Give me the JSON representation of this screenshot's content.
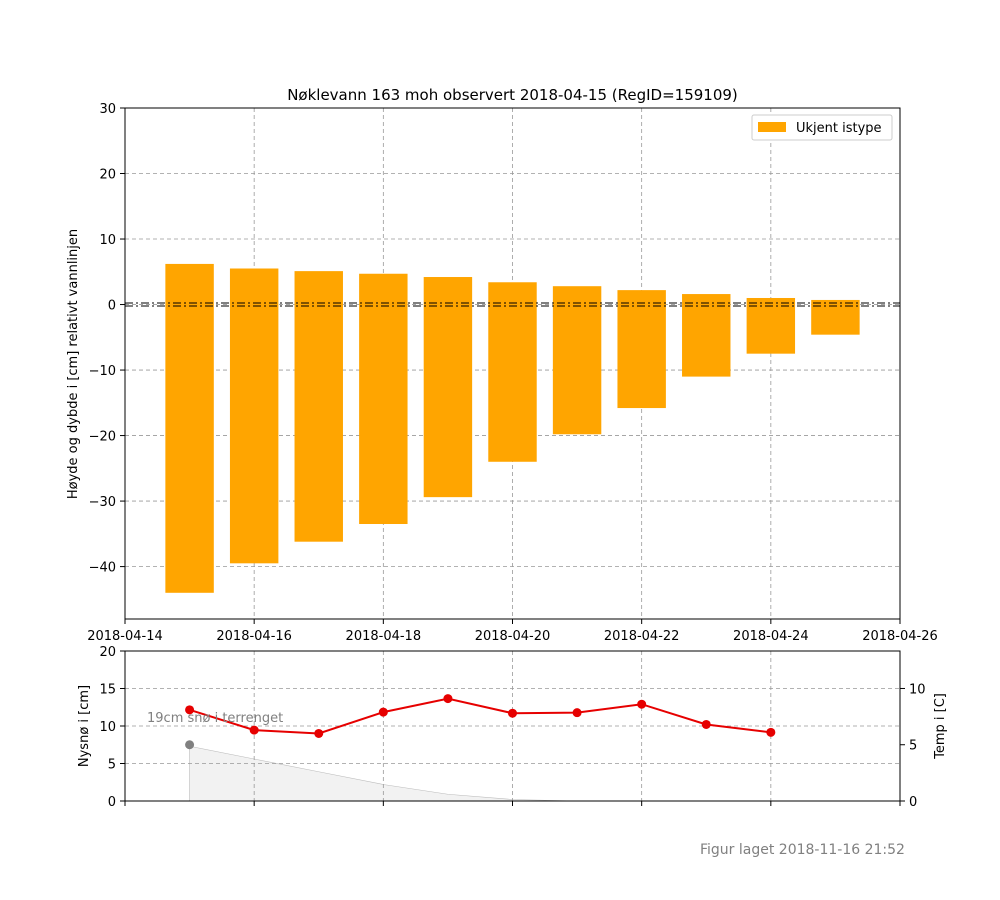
{
  "chart_data": [
    {
      "type": "bar",
      "title": "Nøklevann 163 moh observert 2018-04-15 (RegID=159109)",
      "xlabel": "",
      "ylabel": "Høyde og dybde i [cm] relativt vannlinjen",
      "ylim": [
        -48,
        30
      ],
      "yticks": [
        30,
        20,
        10,
        0,
        -10,
        -20,
        -30,
        -40
      ],
      "ytick_labels": [
        "30",
        "20",
        "10",
        "0",
        "−10",
        "−20",
        "−30",
        "−40"
      ],
      "xlim": [
        "2018-04-14",
        "2018-04-26"
      ],
      "xticks": [
        "2018-04-14",
        "2018-04-16",
        "2018-04-18",
        "2018-04-20",
        "2018-04-22",
        "2018-04-24",
        "2018-04-26"
      ],
      "grid": true,
      "legend": {
        "position": "top-right",
        "entries": [
          "Ukjent istype"
        ]
      },
      "color": "#FFA500",
      "series": [
        {
          "name": "Ukjent istype",
          "bars": [
            {
              "date": "2018-04-15",
              "top": 6.2,
              "bottom": -44.0
            },
            {
              "date": "2018-04-16",
              "top": 5.5,
              "bottom": -39.5
            },
            {
              "date": "2018-04-17",
              "top": 5.1,
              "bottom": -36.2
            },
            {
              "date": "2018-04-18",
              "top": 4.7,
              "bottom": -33.5
            },
            {
              "date": "2018-04-19",
              "top": 4.2,
              "bottom": -29.4
            },
            {
              "date": "2018-04-20",
              "top": 3.4,
              "bottom": -24.0
            },
            {
              "date": "2018-04-21",
              "top": 2.8,
              "bottom": -19.8
            },
            {
              "date": "2018-04-22",
              "top": 2.2,
              "bottom": -15.8
            },
            {
              "date": "2018-04-23",
              "top": 1.6,
              "bottom": -11.0
            },
            {
              "date": "2018-04-24",
              "top": 1.0,
              "bottom": -7.5
            },
            {
              "date": "2018-04-25",
              "top": 0.7,
              "bottom": -4.6
            }
          ]
        }
      ],
      "reference_line": {
        "y": 0,
        "style": "dash-dot",
        "color": "#000000"
      }
    },
    {
      "type": "line",
      "ylabel": "Nysnø i [cm]",
      "ylim": [
        0,
        20
      ],
      "yticks": [
        0,
        5,
        10,
        15,
        20
      ],
      "y2label": "Temp i [C]",
      "y2lim": [
        0,
        13.33
      ],
      "y2ticks": [
        0,
        5,
        10
      ],
      "grid": true,
      "annotation": "19cm snø i terrenget",
      "series": [
        {
          "name": "",
          "axis": "right",
          "color": "#e60000",
          "x": [
            "2018-04-15",
            "2018-04-16",
            "2018-04-17",
            "2018-04-18",
            "2018-04-19",
            "2018-04-20",
            "2018-04-21",
            "2018-04-22",
            "2018-04-23",
            "2018-04-24"
          ],
          "y": [
            8.1,
            6.3,
            6.0,
            7.9,
            9.1,
            7.8,
            7.85,
            8.6,
            6.8,
            6.1
          ]
        },
        {
          "name": "",
          "axis": "left",
          "type": "area",
          "color": "#f2f2f2",
          "x": [
            "2018-04-15",
            "2018-04-16",
            "2018-04-17",
            "2018-04-18",
            "2018-04-19",
            "2018-04-20",
            "2018-04-21"
          ],
          "y": [
            7.3,
            5.6,
            3.9,
            2.2,
            0.9,
            0.2,
            0.0
          ]
        },
        {
          "name": "",
          "axis": "left",
          "type": "scatter",
          "color": "#808080",
          "x": [
            "2018-04-15"
          ],
          "y": [
            7.5
          ]
        }
      ]
    }
  ],
  "footer": "Figur laget 2018-11-16 21:52"
}
